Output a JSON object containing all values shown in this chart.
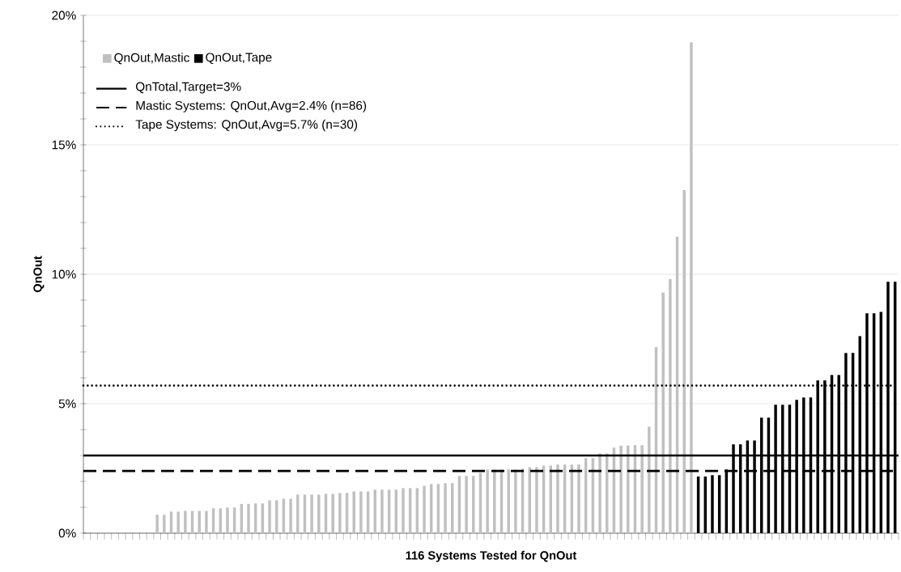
{
  "chart_data": {
    "type": "bar",
    "xlabel": "116 Systems Tested for QnOut",
    "ylabel": "QnOut",
    "categories": [
      null,
      null,
      null,
      null,
      null,
      null,
      null,
      null,
      null,
      null,
      null,
      null,
      null,
      null,
      null,
      null,
      null,
      null,
      null,
      null,
      null,
      null,
      null,
      null,
      null,
      null,
      null,
      null,
      null,
      null,
      null,
      null,
      null,
      null,
      null,
      null,
      null,
      null,
      null,
      null,
      null,
      null,
      null,
      null,
      null,
      null,
      null,
      null,
      null,
      null,
      null,
      null,
      null,
      null,
      null,
      null,
      null,
      null,
      null,
      null,
      null,
      null,
      null,
      null,
      null,
      null,
      null,
      null,
      null,
      null,
      null,
      null,
      null,
      null,
      null,
      null,
      null,
      null,
      null,
      null,
      null,
      null,
      null,
      null,
      null,
      null,
      null,
      null,
      null,
      null,
      null,
      null,
      null,
      null,
      null,
      null,
      null,
      null,
      null,
      null,
      null,
      null,
      null,
      null,
      null,
      null,
      null,
      null,
      null,
      null,
      null,
      null,
      null,
      null,
      null,
      null
    ],
    "series": [
      {
        "name": "QnOut,Mastic",
        "color": "#c0c0c0",
        "values": [
          0,
          0,
          0,
          0,
          0,
          0,
          0,
          0,
          0,
          0,
          0.71,
          0.71,
          0.83,
          0.83,
          0.86,
          0.86,
          0.86,
          0.86,
          0.96,
          0.96,
          0.99,
          0.99,
          1.13,
          1.13,
          1.15,
          1.15,
          1.27,
          1.27,
          1.33,
          1.33,
          1.49,
          1.49,
          1.49,
          1.49,
          1.52,
          1.52,
          1.55,
          1.55,
          1.61,
          1.61,
          1.61,
          1.68,
          1.68,
          1.68,
          1.68,
          1.74,
          1.74,
          1.74,
          1.83,
          1.9,
          1.9,
          1.93,
          1.93,
          2.21,
          2.21,
          2.21,
          2.33,
          2.46,
          2.46,
          2.46,
          2.46,
          2.46,
          2.49,
          2.55,
          2.55,
          2.61,
          2.61,
          2.65,
          2.65,
          2.65,
          2.65,
          2.9,
          2.9,
          3.08,
          3.08,
          3.3,
          3.38,
          3.38,
          3.4,
          3.4,
          4.11,
          7.19,
          9.3,
          9.81,
          11.45,
          13.25,
          18.96,
          null,
          null,
          null,
          null,
          null,
          null,
          null,
          null,
          null,
          null,
          null,
          null,
          null,
          null,
          null,
          null,
          null,
          null,
          null,
          null,
          null,
          null,
          null,
          null,
          null,
          null,
          null,
          null,
          null
        ]
      },
      {
        "name": "QnOut,Tape",
        "color": "#000000",
        "values": [
          null,
          null,
          null,
          null,
          null,
          null,
          null,
          null,
          null,
          null,
          null,
          null,
          null,
          null,
          null,
          null,
          null,
          null,
          null,
          null,
          null,
          null,
          null,
          null,
          null,
          null,
          null,
          null,
          null,
          null,
          null,
          null,
          null,
          null,
          null,
          null,
          null,
          null,
          null,
          null,
          null,
          null,
          null,
          null,
          null,
          null,
          null,
          null,
          null,
          null,
          null,
          null,
          null,
          null,
          null,
          null,
          null,
          null,
          null,
          null,
          null,
          null,
          null,
          null,
          null,
          null,
          null,
          null,
          null,
          null,
          null,
          null,
          null,
          null,
          null,
          null,
          null,
          null,
          null,
          null,
          null,
          null,
          null,
          null,
          null,
          null,
          null,
          2.19,
          2.19,
          2.24,
          2.24,
          2.46,
          3.43,
          3.43,
          3.58,
          3.58,
          4.46,
          4.46,
          4.96,
          4.96,
          4.96,
          5.15,
          5.24,
          5.24,
          5.9,
          5.9,
          6.11,
          6.11,
          6.96,
          6.96,
          7.61,
          8.49,
          8.49,
          8.55,
          9.71,
          9.71
        ]
      }
    ],
    "ylim": [
      0,
      20
    ],
    "yticks": [
      {
        "value": 0,
        "label": "0%"
      },
      {
        "value": 5,
        "label": "5%"
      },
      {
        "value": 10,
        "label": "10%"
      },
      {
        "value": 15,
        "label": "15%"
      },
      {
        "value": 20,
        "label": "20%"
      }
    ],
    "ref_lines": [
      {
        "axis": "y",
        "value": 3,
        "label": "QnTotal,Target=3%",
        "color": "#000000",
        "line_style": "solid"
      },
      {
        "axis": "y",
        "value": 2.4,
        "label": "Mastic Systems: QnOut,Avg=2.4% (n=86)",
        "color": "#000000",
        "line_style": "dashed"
      },
      {
        "axis": "y",
        "value": 5.7,
        "label": "Tape Systems: QnOut,Avg=5.7% (n=30)",
        "color": "#000000",
        "line_style": "dotted"
      }
    ],
    "grid": "y",
    "legend": "top left"
  }
}
